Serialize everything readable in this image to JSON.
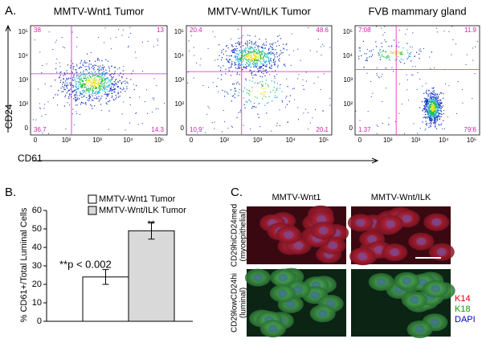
{
  "panel_a": {
    "label": "A.",
    "y_axis_label": "CD24",
    "x_axis_label": "CD61",
    "plots": [
      {
        "title": "MMTV-Wnt1 Tumor",
        "quadrants": [
          "38",
          "13",
          "36.7",
          "14.3"
        ],
        "yticks": [
          "0",
          "10²",
          "10³",
          "10⁴",
          "10⁵"
        ],
        "xticks": [
          "0",
          "10²",
          "10³",
          "10⁴",
          "10⁵"
        ]
      },
      {
        "title": "MMTV-Wnt/ILK Tumor",
        "quadrants": [
          "20.4",
          "48.6",
          "10.9",
          "20.1"
        ],
        "yticks": [
          "0",
          "10²",
          "10³",
          "10⁴",
          "10⁵"
        ],
        "xticks": [
          "0",
          "10²",
          "10³",
          "10⁴",
          "10⁵"
        ]
      },
      {
        "title": "FVB mammary gland",
        "quadrants": [
          "7.08",
          "11.9",
          "1.37",
          "79.6"
        ],
        "yticks": [
          "0",
          "10²",
          "10³",
          "10⁴",
          "10⁵"
        ],
        "xticks": [
          "0",
          "10²",
          "10³",
          "10⁴",
          "10⁵"
        ]
      }
    ]
  },
  "chart_data": {
    "type": "bar",
    "label": "B.",
    "y_label": "% CD61+/Total Luminal Cells",
    "series": [
      {
        "name": "MMTV-Wnt1 Tumor",
        "color": "#ffffff",
        "values": [
          24
        ],
        "errors": [
          4
        ]
      },
      {
        "name": "MMTV-Wnt/ILK Tumor",
        "color": "#d9d9d9",
        "values": [
          49
        ],
        "errors": [
          4.5
        ]
      }
    ],
    "annotations": [
      "**p < 0.002",
      "**"
    ],
    "ylim": [
      0,
      60
    ],
    "yticks": [
      0,
      10,
      20,
      30,
      40,
      50,
      60
    ]
  },
  "panel_c": {
    "label": "C.",
    "columns": [
      "MMTV-Wnt1",
      "MMTV-Wnt/ILK"
    ],
    "rows": [
      [
        "CD29hiCD24med",
        "(myoepithelial)"
      ],
      [
        "CD29lowCD24hi",
        "(luminal)"
      ]
    ],
    "stains": [
      {
        "name": "K14",
        "color": "#e00000"
      },
      {
        "name": "K18",
        "color": "#00a000"
      },
      {
        "name": "DAPI",
        "color": "#0000cc"
      }
    ]
  }
}
